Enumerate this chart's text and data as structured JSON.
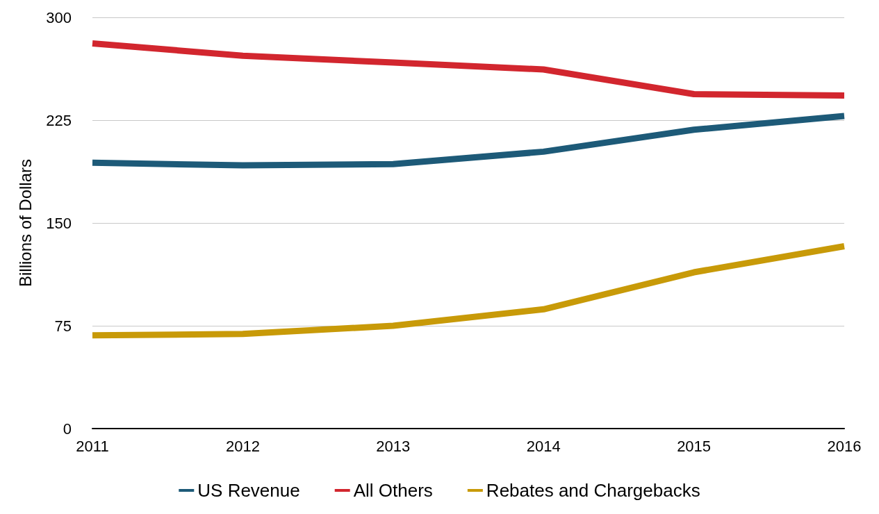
{
  "chart_data": {
    "type": "line",
    "ylabel": "Billions of Dollars",
    "x": [
      2011,
      2012,
      2013,
      2014,
      2015,
      2016
    ],
    "xlim": [
      2011,
      2016
    ],
    "xticks": [
      2011,
      2012,
      2013,
      2014,
      2015,
      2016
    ],
    "ylim": [
      0,
      300
    ],
    "yticks": [
      0,
      75,
      150,
      225,
      300
    ],
    "grid": "y",
    "legend": "bottom",
    "marker": "none",
    "line_style": "solid",
    "series": [
      {
        "name": "US Revenue",
        "color": "#1d5a78",
        "values": [
          194,
          192,
          193,
          202,
          218,
          228
        ]
      },
      {
        "name": "All Others",
        "color": "#d2262e",
        "values": [
          281,
          272,
          267,
          262,
          244,
          243
        ]
      },
      {
        "name": "Rebates and Chargebacks",
        "color": "#c89a08",
        "values": [
          68,
          69,
          75,
          87,
          114,
          133
        ]
      }
    ]
  }
}
